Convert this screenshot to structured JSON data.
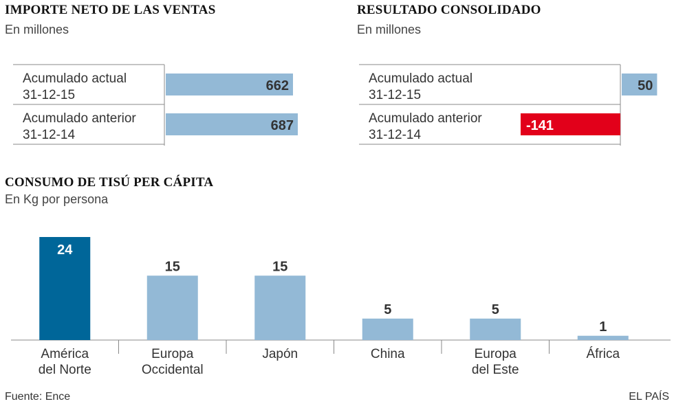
{
  "sales": {
    "title": "IMPORTE NETO DE LAS VENTAS",
    "subtitle": "En millones"
  },
  "result": {
    "title": "RESULTADO CONSOLIDADO",
    "subtitle": "En millones"
  },
  "tissue": {
    "title": "CONSUMO DE TISÚ PER CÁPITA",
    "subtitle": "En Kg por persona"
  },
  "footer": {
    "source": "Fuente: Ence",
    "brand": "EL PAÍS"
  },
  "colors": {
    "bar_light": "#93b9d6",
    "bar_dark": "#006699",
    "negative": "#e2001a",
    "axis": "#888888",
    "text": "#333333"
  },
  "chart_data": [
    {
      "type": "bar",
      "orientation": "horizontal",
      "title": "IMPORTE NETO DE LAS VENTAS",
      "subtitle": "En millones",
      "categories": [
        [
          "Acumulado actual",
          "31-12-15"
        ],
        [
          "Acumulado anterior",
          "31-12-14"
        ]
      ],
      "values": [
        662,
        687
      ],
      "labels": [
        "662",
        "687"
      ],
      "xlim": [
        0,
        700
      ]
    },
    {
      "type": "bar",
      "orientation": "horizontal",
      "title": "RESULTADO CONSOLIDADO",
      "subtitle": "En millones",
      "categories": [
        [
          "Acumulado actual",
          "31-12-15"
        ],
        [
          "Acumulado anterior",
          "31-12-14"
        ]
      ],
      "values": [
        50,
        -141
      ],
      "labels": [
        "50",
        "-141"
      ],
      "xlim": [
        -141,
        50
      ]
    },
    {
      "type": "bar",
      "orientation": "vertical",
      "title": "CONSUMO DE TISÚ PER CÁPITA",
      "subtitle": "En Kg por persona",
      "categories": [
        [
          "América",
          "del Norte"
        ],
        [
          "Europa",
          "Occidental"
        ],
        [
          "Japón"
        ],
        [
          "China"
        ],
        [
          "Europa",
          "del Este"
        ],
        [
          "África"
        ]
      ],
      "values": [
        24,
        15,
        15,
        5,
        5,
        1
      ],
      "labels": [
        "24",
        "15",
        "15",
        "5",
        "5",
        "1"
      ],
      "highlight_index": 0,
      "ylim": [
        0,
        24
      ]
    }
  ]
}
